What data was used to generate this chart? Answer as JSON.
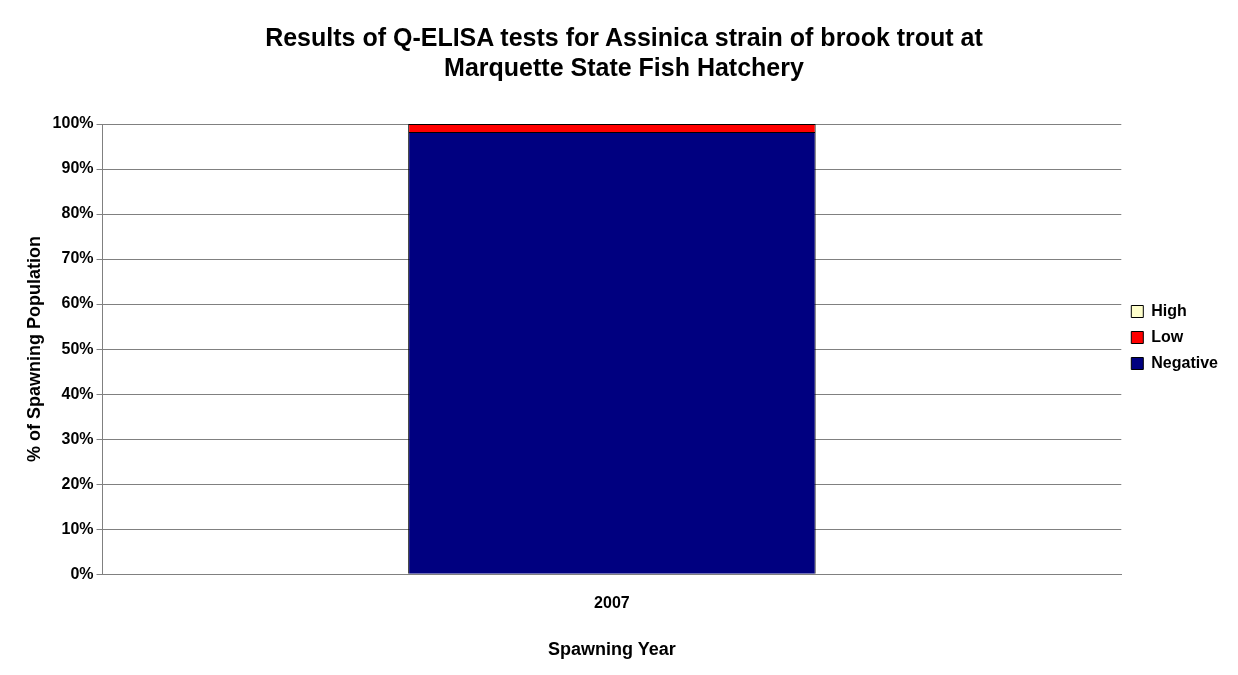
{
  "chart_data": {
    "type": "bar",
    "title": "Results of Q-ELISA tests for Assinica strain of brook trout at Marquette State Fish Hatchery",
    "xlabel": "Spawning Year",
    "ylabel": "% of Spawning Population",
    "categories": [
      "2007"
    ],
    "stacked": true,
    "series": [
      {
        "name": "Negative",
        "color": "#000080",
        "values": [
          98.2
        ]
      },
      {
        "name": "Low",
        "color": "#ff0000",
        "values": [
          1.8
        ]
      },
      {
        "name": "High",
        "color": "#ffffcc",
        "values": [
          0
        ]
      }
    ],
    "ylim": [
      0,
      100
    ],
    "yticks": [
      {
        "value": 0,
        "label": "0%"
      },
      {
        "value": 10,
        "label": "10%"
      },
      {
        "value": 20,
        "label": "20%"
      },
      {
        "value": 30,
        "label": "30%"
      },
      {
        "value": 40,
        "label": "40%"
      },
      {
        "value": 50,
        "label": "50%"
      },
      {
        "value": 60,
        "label": "60%"
      },
      {
        "value": 70,
        "label": "70%"
      },
      {
        "value": 80,
        "label": "80%"
      },
      {
        "value": 90,
        "label": "90%"
      },
      {
        "value": 100,
        "label": "100%"
      }
    ],
    "grid": "y",
    "legend": "right"
  }
}
